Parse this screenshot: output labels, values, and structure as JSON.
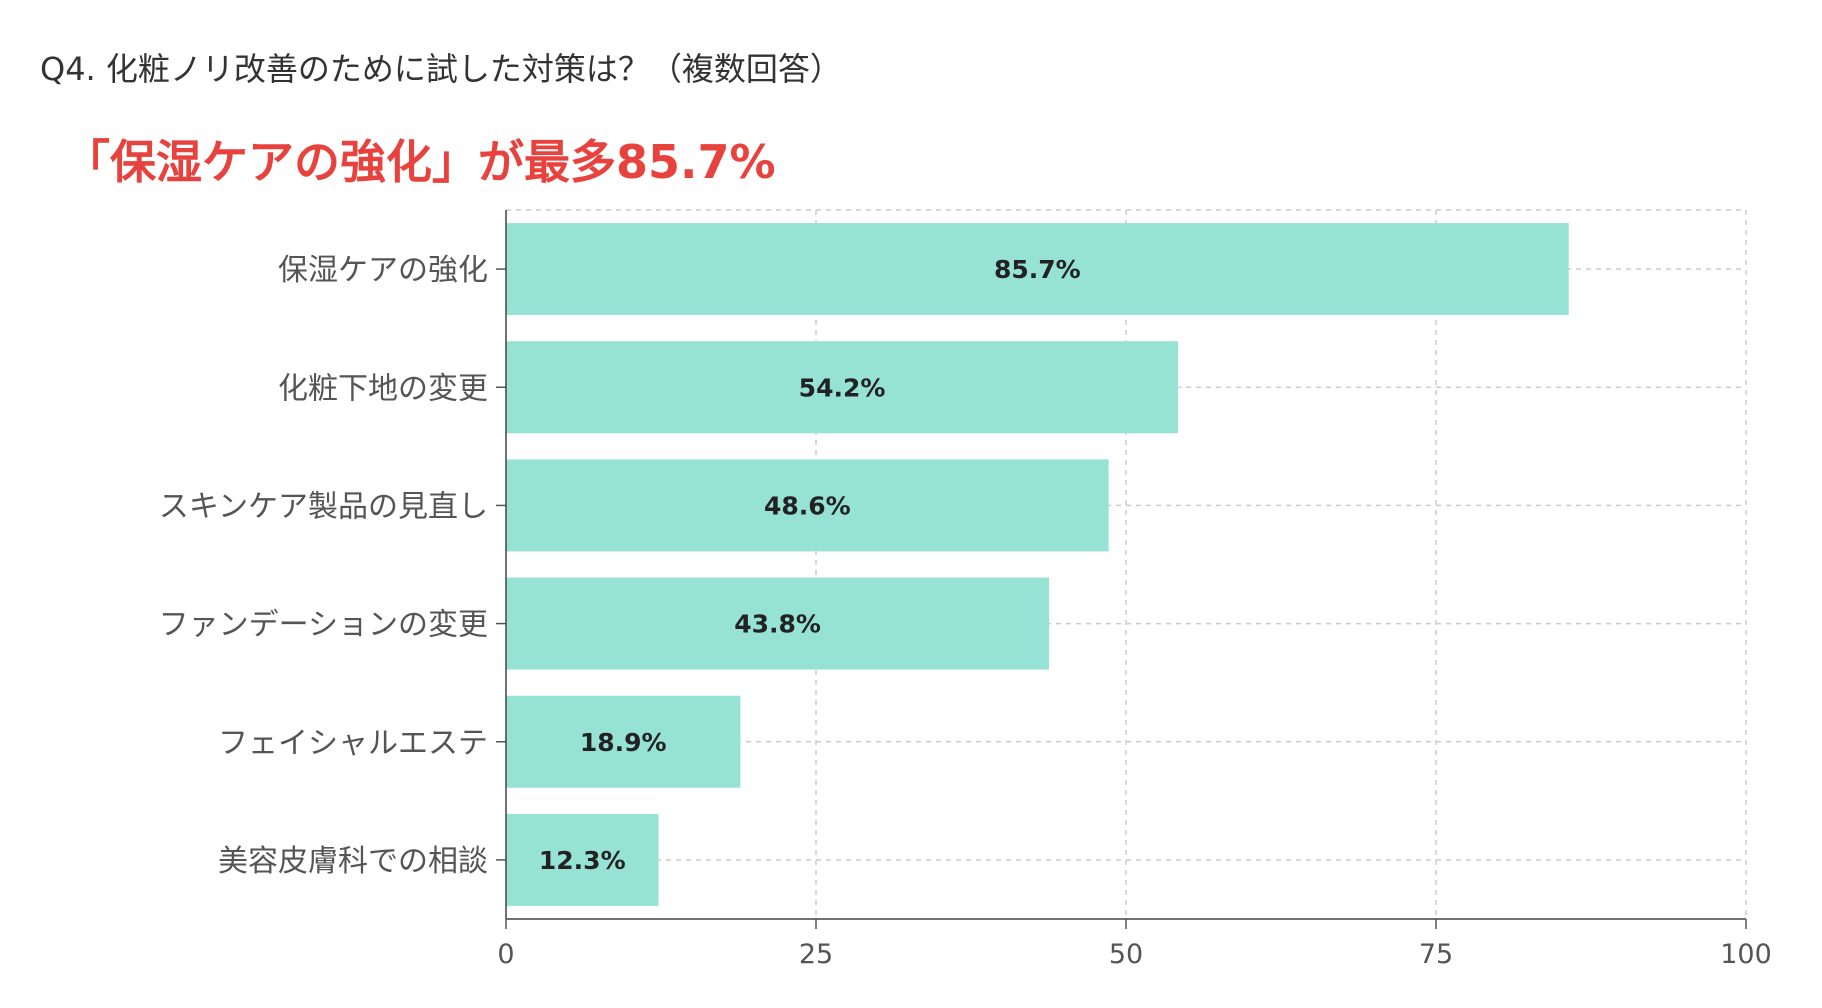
{
  "question": "Q4. 化粧ノリ改善のために試した対策は？（複数回答）",
  "headline": "「保湿ケアの強化」が最多85.7%",
  "chart_data": {
    "type": "bar",
    "orientation": "horizontal",
    "categories": [
      "保湿ケアの強化",
      "化粧下地の変更",
      "スキンケア製品の見直し",
      "ファンデーションの変更",
      "フェイシャルエステ",
      "美容皮膚科での相談"
    ],
    "values": [
      85.7,
      54.2,
      48.6,
      43.8,
      18.9,
      12.3
    ],
    "value_labels": [
      "85.7%",
      "54.2%",
      "48.6%",
      "43.8%",
      "18.9%",
      "12.3%"
    ],
    "xlim": [
      0,
      100
    ],
    "xticks": [
      0,
      25,
      50,
      75,
      100
    ],
    "xtick_labels": [
      "0",
      "25",
      "50",
      "75",
      "100"
    ],
    "grid": true,
    "bar_color": "#96e2d4",
    "headline_color": "#e8423e"
  }
}
